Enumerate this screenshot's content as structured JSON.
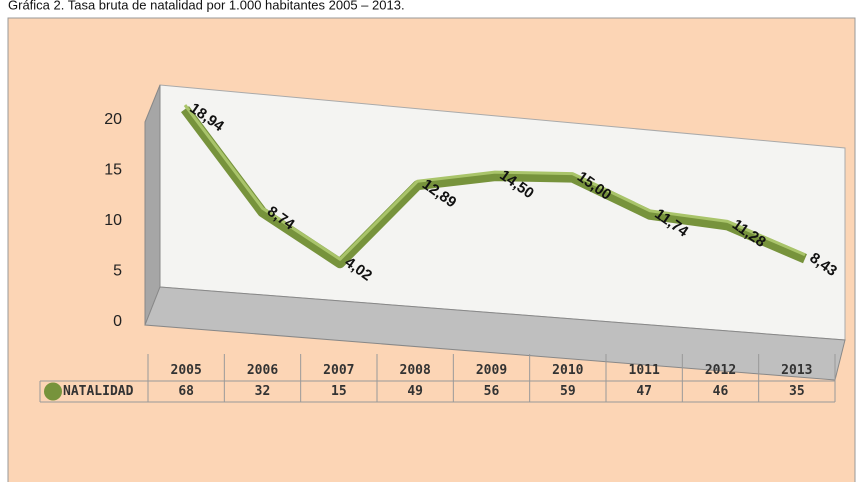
{
  "chart_data": {
    "type": "line",
    "title": "Gráfica 2. Tasa bruta de natalidad por 1.000 habitantes 2005 – 2013.",
    "categories": [
      "2005",
      "2006",
      "2007",
      "2008",
      "2009",
      "2010",
      "1011",
      "2012",
      "2013"
    ],
    "series": [
      {
        "name": "NATALIDAD",
        "color": "#77933c",
        "values": [
          18.94,
          8.74,
          4.02,
          12.89,
          14.5,
          15.0,
          11.74,
          11.28,
          8.43
        ],
        "value_labels": [
          "18,94",
          "8,74",
          "4,02",
          "12,89",
          "14,50",
          "15,00",
          "11,74",
          "11,28",
          "8,43"
        ],
        "table_values": [
          68,
          32,
          15,
          49,
          56,
          59,
          47,
          46,
          35
        ]
      }
    ],
    "ylim": [
      0,
      20
    ],
    "yticks": [
      0,
      5,
      10,
      15,
      20
    ]
  }
}
